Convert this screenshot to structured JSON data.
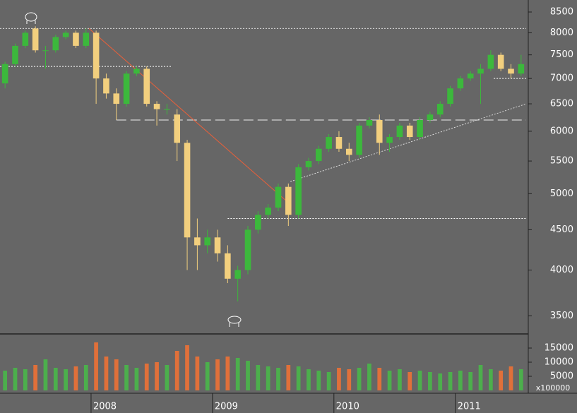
{
  "chart_data": {
    "type": "candlestick",
    "log_y": true,
    "categories": [
      null,
      null,
      null,
      null,
      null,
      null,
      null,
      null,
      null,
      "2008",
      null,
      null,
      null,
      null,
      null,
      null,
      null,
      null,
      null,
      null,
      null,
      "2009",
      null,
      null,
      null,
      null,
      null,
      null,
      null,
      null,
      null,
      null,
      null,
      "2010",
      null,
      null,
      null,
      null,
      null,
      null,
      null,
      null,
      null,
      null,
      null,
      "2011",
      null,
      null,
      null,
      null,
      null,
      null
    ],
    "open": [
      6900,
      7300,
      7700,
      8100,
      7600,
      7600,
      7900,
      8000,
      7700,
      8000,
      7000,
      6700,
      6500,
      7100,
      7200,
      6500,
      6400,
      6300,
      5800,
      4400,
      4300,
      4400,
      4200,
      3900,
      4000,
      4500,
      4700,
      4800,
      5100,
      4700,
      5400,
      5500,
      5700,
      5900,
      5700,
      5600,
      6100,
      6200,
      5800,
      5900,
      6100,
      5900,
      6200,
      6300,
      6500,
      6800,
      7000,
      7100,
      7200,
      7500,
      7200,
      7100
    ],
    "high": [
      7350,
      7750,
      8050,
      8150,
      7700,
      7950,
      8050,
      8050,
      8100,
      8050,
      7100,
      6800,
      7150,
      7250,
      7250,
      6550,
      6500,
      6400,
      5850,
      4650,
      4500,
      4500,
      4300,
      4050,
      4550,
      4750,
      4850,
      5150,
      5150,
      5450,
      5550,
      5750,
      5950,
      6000,
      5800,
      6150,
      6250,
      6300,
      5950,
      6150,
      6150,
      6250,
      6350,
      6550,
      6850,
      7050,
      7150,
      7300,
      7600,
      7550,
      7300,
      7500
    ],
    "low": [
      6800,
      7250,
      7650,
      7550,
      7200,
      7550,
      7850,
      7650,
      7650,
      6500,
      6600,
      6200,
      6450,
      7050,
      6450,
      6100,
      6300,
      5500,
      4000,
      4000,
      4200,
      4100,
      3850,
      3650,
      3950,
      4450,
      4650,
      4750,
      4550,
      4650,
      5350,
      5450,
      5650,
      5650,
      5500,
      5550,
      6050,
      5600,
      5650,
      5850,
      5850,
      5850,
      6150,
      6250,
      6450,
      6750,
      6950,
      6500,
      7150,
      7150,
      7000,
      7050
    ],
    "close": [
      7300,
      7700,
      8000,
      7600,
      7600,
      7900,
      8000,
      7700,
      8000,
      7000,
      6700,
      6500,
      7100,
      7200,
      6500,
      6400,
      6400,
      5800,
      4400,
      4300,
      4400,
      4200,
      3900,
      4000,
      4500,
      4700,
      4800,
      5100,
      4700,
      5400,
      5500,
      5700,
      5900,
      5700,
      5600,
      6100,
      6200,
      5800,
      5900,
      6100,
      5900,
      6200,
      6300,
      6500,
      6800,
      7000,
      7100,
      7200,
      7500,
      7200,
      7100,
      7300
    ],
    "volume": [
      7000,
      8000,
      7500,
      9000,
      11000,
      8000,
      7500,
      8500,
      9000,
      17000,
      12000,
      11000,
      9000,
      8000,
      9500,
      10000,
      9000,
      14000,
      16000,
      12000,
      10000,
      11000,
      12000,
      11500,
      10500,
      9000,
      8500,
      8000,
      9000,
      8500,
      7500,
      7000,
      6500,
      8000,
      7500,
      8000,
      9500,
      8000,
      7000,
      7500,
      6500,
      7000,
      6500,
      6000,
      6500,
      7000,
      6500,
      9000,
      7500,
      7000,
      8500,
      7500
    ],
    "up_color": "#3cb83c",
    "down_color": "#f2cf7e",
    "volume_up_color": "#4caf4c",
    "volume_down_color": "#e0703a",
    "ylim": [
      3319,
      8803
    ],
    "yticks": [
      3500,
      4000,
      4500,
      5000,
      5500,
      6000,
      6500,
      7000,
      7500,
      8000,
      8500
    ],
    "volume_ylim": [
      0,
      19750
    ],
    "volume_yticks": [
      5000,
      10000,
      15000
    ],
    "volume_unit": "x100000",
    "levels": [
      {
        "from": [
          0,
          8100
        ],
        "to": [
          52,
          8100
        ],
        "style": "dotted",
        "color": "#ddd"
      },
      {
        "from": [
          0,
          7250
        ],
        "to": [
          17,
          7250
        ],
        "style": "dotted",
        "color": "#fff"
      },
      {
        "from": [
          11.5,
          6200
        ],
        "to": [
          52,
          6200
        ],
        "style": "dashed",
        "color": "#eee"
      },
      {
        "from": [
          22.5,
          4650
        ],
        "to": [
          52,
          4650
        ],
        "style": "dotted",
        "color": "#fff"
      },
      {
        "from": [
          48.8,
          7000
        ],
        "to": [
          52,
          7000
        ],
        "style": "dotted",
        "color": "#fff"
      },
      {
        "from": [
          8.8,
          8100
        ],
        "to": [
          28.5,
          4870
        ],
        "style": "solid",
        "color": "#e8603a"
      },
      {
        "from": [
          28.7,
          5180
        ],
        "to": [
          52,
          6500
        ],
        "style": "dotted",
        "color": "#ddd"
      }
    ]
  }
}
